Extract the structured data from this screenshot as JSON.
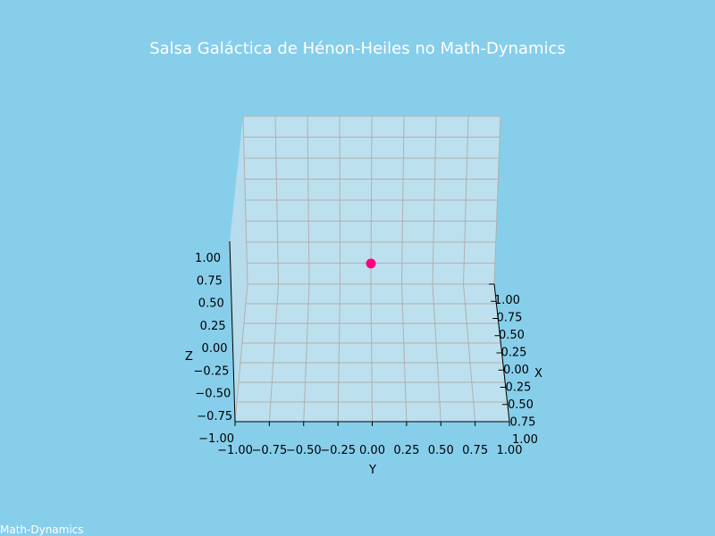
{
  "chart_data": {
    "type": "scatter3d",
    "title": "Salsa Galáctica de Hénon-Heiles no Math-Dynamics",
    "xlabel": "X",
    "ylabel": "Y",
    "zlabel": "Z",
    "xlim": [
      -1.0,
      1.0
    ],
    "ylim": [
      -1.0,
      1.0
    ],
    "zlim": [
      -1.0,
      1.0
    ],
    "x_ticks": [
      "1.00",
      "0.75",
      "0.50",
      "0.25",
      "0.00",
      "0.25",
      "0.50",
      "0.75",
      "1.00"
    ],
    "y_ticks": [
      "−1.00",
      "−0.75",
      "−0.50",
      "−0.25",
      "0.00",
      "0.25",
      "0.50",
      "0.75",
      "1.00"
    ],
    "z_ticks": [
      "−1.00",
      "−0.75",
      "−0.50",
      "−0.25",
      "0.00",
      "0.25",
      "0.50",
      "0.75",
      "1.00"
    ],
    "points": [
      {
        "x": 0.0,
        "y": 0.0,
        "z": 0.0
      }
    ],
    "point_color": "#FF0080",
    "pane_color": "#BDE0EE",
    "grid_color": "#B0B0B0",
    "background": "#87CEEB",
    "grid": true
  },
  "watermark": "Math-Dynamics"
}
